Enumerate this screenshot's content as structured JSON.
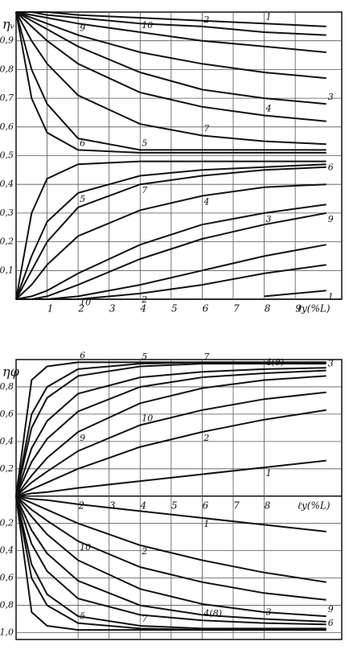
{
  "chart_data": [
    {
      "type": "line",
      "y_label": "ηᵥ",
      "x_label": "ℓy(%L)",
      "grid": true,
      "color": "#111111",
      "x": [
        0,
        0.5,
        1,
        2,
        4,
        6,
        8,
        10
      ],
      "xlim": [
        0,
        10.5
      ],
      "xticks": [
        1,
        2,
        3,
        4,
        5,
        6,
        7,
        8,
        9
      ],
      "ylim": [
        0,
        1.0
      ],
      "yticks": [
        {
          "value": 0.1,
          "label": "0,1"
        },
        {
          "value": 0.2,
          "label": "0,2"
        },
        {
          "value": 0.3,
          "label": "0,3"
        },
        {
          "value": 0.4,
          "label": "0,4"
        },
        {
          "value": 0.5,
          "label": "0,5"
        },
        {
          "value": 0.6,
          "label": "0,6"
        },
        {
          "value": 0.7,
          "label": "0,7"
        },
        {
          "value": 0.8,
          "label": "0,8"
        },
        {
          "value": 0.9,
          "label": "0,9"
        }
      ],
      "series": [
        {
          "name": "6",
          "values": [
            1,
            0.7,
            0.58,
            0.52,
            0.51,
            0.51,
            0.51,
            0.51
          ]
        },
        {
          "name": "5",
          "values": [
            1,
            0.8,
            0.68,
            0.56,
            0.52,
            0.52,
            0.52,
            0.52
          ]
        },
        {
          "name": "7",
          "values": [
            1,
            0.9,
            0.82,
            0.71,
            0.61,
            0.57,
            0.55,
            0.54
          ]
        },
        {
          "name": "4",
          "values": [
            1,
            0.95,
            0.9,
            0.82,
            0.72,
            0.67,
            0.64,
            0.62
          ]
        },
        {
          "name": "3",
          "values": [
            1,
            0.97,
            0.94,
            0.88,
            0.79,
            0.73,
            0.7,
            0.68
          ]
        },
        {
          "name": "9",
          "values": [
            1,
            0.98,
            0.96,
            0.92,
            0.86,
            0.82,
            0.79,
            0.77
          ]
        },
        {
          "name": "10",
          "values": [
            1,
            0.99,
            0.98,
            0.96,
            0.93,
            0.9,
            0.88,
            0.86
          ]
        },
        {
          "name": "2",
          "values": [
            1,
            1,
            0.99,
            0.98,
            0.96,
            0.95,
            0.93,
            0.92
          ]
        },
        {
          "name": "1",
          "values": [
            1,
            1,
            1,
            0.99,
            0.98,
            0.97,
            0.96,
            0.95
          ]
        },
        {
          "name": "6",
          "values": [
            0,
            0.3,
            0.42,
            0.47,
            0.48,
            0.48,
            0.48,
            0.48
          ]
        },
        {
          "name": "5",
          "values": [
            0,
            0.15,
            0.27,
            0.37,
            0.43,
            0.45,
            0.46,
            0.47
          ]
        },
        {
          "name": "7",
          "values": [
            0,
            0.1,
            0.2,
            0.32,
            0.4,
            0.43,
            0.45,
            0.46
          ]
        },
        {
          "name": "4",
          "values": [
            0,
            0.05,
            0.12,
            0.22,
            0.31,
            0.36,
            0.39,
            0.4
          ]
        },
        {
          "name": "3",
          "values": [
            0,
            0.01,
            0.03,
            0.09,
            0.19,
            0.26,
            0.3,
            0.33
          ]
        },
        {
          "name": "9",
          "values": [
            0,
            0,
            0.01,
            0.05,
            0.14,
            0.21,
            0.26,
            0.3
          ]
        },
        {
          "name": "10",
          "values": [
            0,
            0,
            0,
            0.01,
            0.05,
            0.1,
            0.15,
            0.19
          ]
        },
        {
          "name": "2",
          "values": [
            0,
            0,
            0,
            0,
            0.02,
            0.05,
            0.09,
            0.12
          ]
        },
        {
          "name": "1",
          "values": [
            null,
            null,
            null,
            null,
            null,
            null,
            0.01,
            0.03
          ]
        }
      ]
    },
    {
      "type": "line",
      "y_label": "ηφ",
      "x_label": "ℓy(%L)",
      "grid": true,
      "color": "#111111",
      "x": [
        0,
        0.5,
        1,
        2,
        4,
        6,
        8,
        10
      ],
      "xlim": [
        0,
        10.5
      ],
      "xticks": [
        2,
        3,
        4,
        5,
        6,
        7,
        8
      ],
      "ylim": [
        -1.05,
        1.0
      ],
      "yticks": [
        {
          "value": 0.8,
          "label": "0,8"
        },
        {
          "value": 0.6,
          "label": "0,6"
        },
        {
          "value": 0.4,
          "label": "0,4"
        },
        {
          "value": 0.2,
          "label": "0,2"
        },
        {
          "value": -0.2,
          "label": "- 0,2"
        },
        {
          "value": -0.4,
          "label": "- 0,4"
        },
        {
          "value": -0.6,
          "label": "- 0,6"
        },
        {
          "value": -0.8,
          "label": "- 0,8"
        },
        {
          "value": -1.0,
          "label": "-1,0"
        }
      ],
      "series": [
        {
          "name": "6",
          "values": [
            0,
            0.85,
            0.95,
            0.98,
            0.98,
            0.98,
            0.98,
            0.98
          ]
        },
        {
          "name": "5",
          "values": [
            0,
            0.6,
            0.8,
            0.93,
            0.97,
            0.98,
            0.98,
            0.98
          ]
        },
        {
          "name": "7",
          "values": [
            0,
            0.5,
            0.72,
            0.88,
            0.95,
            0.97,
            0.97,
            0.97
          ]
        },
        {
          "name": "4(8)",
          "values": [
            0,
            0.35,
            0.55,
            0.75,
            0.87,
            0.91,
            0.93,
            0.94
          ]
        },
        {
          "name": "3",
          "values": [
            0,
            0.25,
            0.42,
            0.62,
            0.8,
            0.87,
            0.9,
            0.92
          ]
        },
        {
          "name": "9",
          "values": [
            0,
            0.15,
            0.28,
            0.47,
            0.68,
            0.79,
            0.85,
            0.88
          ]
        },
        {
          "name": "10",
          "values": [
            0,
            0.1,
            0.18,
            0.33,
            0.52,
            0.63,
            0.71,
            0.76
          ]
        },
        {
          "name": "2",
          "values": [
            0,
            0.05,
            0.1,
            0.2,
            0.36,
            0.47,
            0.56,
            0.63
          ]
        },
        {
          "name": "1",
          "values": [
            0,
            0.02,
            0.03,
            0.06,
            0.11,
            0.16,
            0.21,
            0.26
          ]
        },
        {
          "name": "6",
          "values": [
            0,
            -0.85,
            -0.95,
            -0.98,
            -0.98,
            -0.98,
            -0.98,
            -0.98
          ]
        },
        {
          "name": "5",
          "values": [
            0,
            -0.6,
            -0.8,
            -0.93,
            -0.97,
            -0.98,
            -0.98,
            -0.98
          ]
        },
        {
          "name": "7",
          "values": [
            0,
            -0.5,
            -0.72,
            -0.88,
            -0.95,
            -0.97,
            -0.97,
            -0.97
          ]
        },
        {
          "name": "4(8)",
          "values": [
            0,
            -0.35,
            -0.55,
            -0.75,
            -0.87,
            -0.91,
            -0.93,
            -0.94
          ]
        },
        {
          "name": "3",
          "values": [
            0,
            -0.25,
            -0.42,
            -0.62,
            -0.8,
            -0.87,
            -0.9,
            -0.92
          ]
        },
        {
          "name": "9",
          "values": [
            0,
            -0.15,
            -0.28,
            -0.47,
            -0.68,
            -0.79,
            -0.85,
            -0.88
          ]
        },
        {
          "name": "10",
          "values": [
            0,
            -0.1,
            -0.18,
            -0.33,
            -0.52,
            -0.63,
            -0.71,
            -0.76
          ]
        },
        {
          "name": "2",
          "values": [
            0,
            -0.05,
            -0.1,
            -0.2,
            -0.36,
            -0.47,
            -0.56,
            -0.63
          ]
        },
        {
          "name": "1",
          "values": [
            0,
            -0.02,
            -0.03,
            -0.06,
            -0.11,
            -0.16,
            -0.21,
            -0.26
          ]
        }
      ]
    }
  ]
}
